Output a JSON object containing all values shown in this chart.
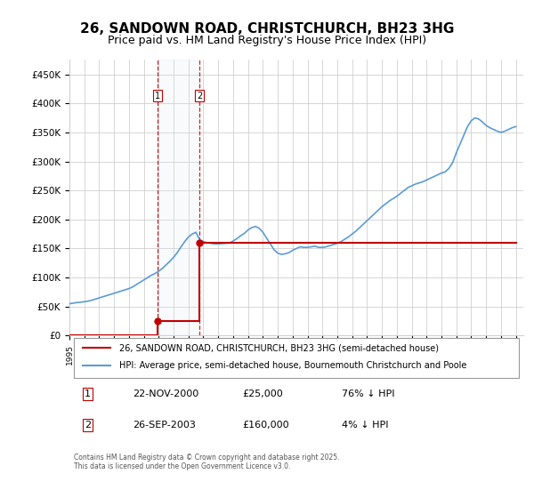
{
  "title": "26, SANDOWN ROAD, CHRISTCHURCH, BH23 3HG",
  "subtitle": "Price paid vs. HM Land Registry's House Price Index (HPI)",
  "legend_line1": "26, SANDOWN ROAD, CHRISTCHURCH, BH23 3HG (semi-detached house)",
  "legend_line2": "HPI: Average price, semi-detached house, Bournemouth Christchurch and Poole",
  "transaction1_label": "1",
  "transaction1_date": "22-NOV-2000",
  "transaction1_price": "£25,000",
  "transaction1_hpi": "76% ↓ HPI",
  "transaction2_label": "2",
  "transaction2_date": "26-SEP-2003",
  "transaction2_price": "£160,000",
  "transaction2_hpi": "4% ↓ HPI",
  "footer": "Contains HM Land Registry data © Crown copyright and database right 2025.\nThis data is licensed under the Open Government Licence v3.0.",
  "hpi_color": "#5b9bd5",
  "price_color": "#c00000",
  "marker_color": "#c00000",
  "shade_color": "#dce6f1",
  "vline_color": "#c00000",
  "grid_color": "#d0d0d0",
  "background_color": "#ffffff",
  "ylim": [
    0,
    475000
  ],
  "yticks": [
    0,
    50000,
    100000,
    150000,
    200000,
    250000,
    300000,
    350000,
    400000,
    450000
  ],
  "xlabel_start_year": 1995,
  "xlabel_end_year": 2025,
  "transaction1_year": 2000.9,
  "transaction2_year": 2003.75,
  "hpi_years": [
    1995.0,
    1995.25,
    1995.5,
    1995.75,
    1996.0,
    1996.25,
    1996.5,
    1996.75,
    1997.0,
    1997.25,
    1997.5,
    1997.75,
    1998.0,
    1998.25,
    1998.5,
    1998.75,
    1999.0,
    1999.25,
    1999.5,
    1999.75,
    2000.0,
    2000.25,
    2000.5,
    2000.75,
    2001.0,
    2001.25,
    2001.5,
    2001.75,
    2002.0,
    2002.25,
    2002.5,
    2002.75,
    2003.0,
    2003.25,
    2003.5,
    2003.75,
    2004.0,
    2004.25,
    2004.5,
    2004.75,
    2005.0,
    2005.25,
    2005.5,
    2005.75,
    2006.0,
    2006.25,
    2006.5,
    2006.75,
    2007.0,
    2007.25,
    2007.5,
    2007.75,
    2008.0,
    2008.25,
    2008.5,
    2008.75,
    2009.0,
    2009.25,
    2009.5,
    2009.75,
    2010.0,
    2010.25,
    2010.5,
    2010.75,
    2011.0,
    2011.25,
    2011.5,
    2011.75,
    2012.0,
    2012.25,
    2012.5,
    2012.75,
    2013.0,
    2013.25,
    2013.5,
    2013.75,
    2014.0,
    2014.25,
    2014.5,
    2014.75,
    2015.0,
    2015.25,
    2015.5,
    2015.75,
    2016.0,
    2016.25,
    2016.5,
    2016.75,
    2017.0,
    2017.25,
    2017.5,
    2017.75,
    2018.0,
    2018.25,
    2018.5,
    2018.75,
    2019.0,
    2019.25,
    2019.5,
    2019.75,
    2020.0,
    2020.25,
    2020.5,
    2020.75,
    2021.0,
    2021.25,
    2021.5,
    2021.75,
    2022.0,
    2022.25,
    2022.5,
    2022.75,
    2023.0,
    2023.25,
    2023.5,
    2023.75,
    2024.0,
    2024.25,
    2024.5,
    2024.75,
    2025.0
  ],
  "hpi_values": [
    55000,
    56000,
    57000,
    57500,
    58500,
    59500,
    61000,
    63000,
    65000,
    67000,
    69000,
    71000,
    73000,
    75000,
    77000,
    79000,
    81000,
    84000,
    88000,
    92000,
    96000,
    100000,
    104000,
    107000,
    111000,
    116000,
    122000,
    128000,
    135000,
    143000,
    153000,
    162000,
    170000,
    175000,
    178000,
    165000,
    162000,
    160000,
    159000,
    158000,
    158000,
    158500,
    159000,
    159500,
    163000,
    167000,
    172000,
    176000,
    182000,
    186000,
    188000,
    185000,
    178000,
    168000,
    158000,
    148000,
    142000,
    140000,
    141000,
    143000,
    147000,
    150000,
    153000,
    152000,
    152000,
    153000,
    154000,
    152000,
    152000,
    153000,
    155000,
    157000,
    159000,
    162000,
    166000,
    170000,
    175000,
    180000,
    186000,
    192000,
    198000,
    204000,
    210000,
    216000,
    222000,
    227000,
    232000,
    236000,
    240000,
    245000,
    250000,
    255000,
    258000,
    261000,
    263000,
    265000,
    268000,
    271000,
    274000,
    277000,
    280000,
    282000,
    288000,
    298000,
    315000,
    330000,
    345000,
    360000,
    370000,
    375000,
    373000,
    368000,
    362000,
    358000,
    355000,
    352000,
    350000,
    352000,
    355000,
    358000,
    360000
  ],
  "price_line_x": [
    1995.0,
    2000.9,
    2000.9,
    2003.75,
    2003.75,
    2025.0
  ],
  "price_line_y": [
    0,
    0,
    25000,
    25000,
    160000,
    160000
  ]
}
